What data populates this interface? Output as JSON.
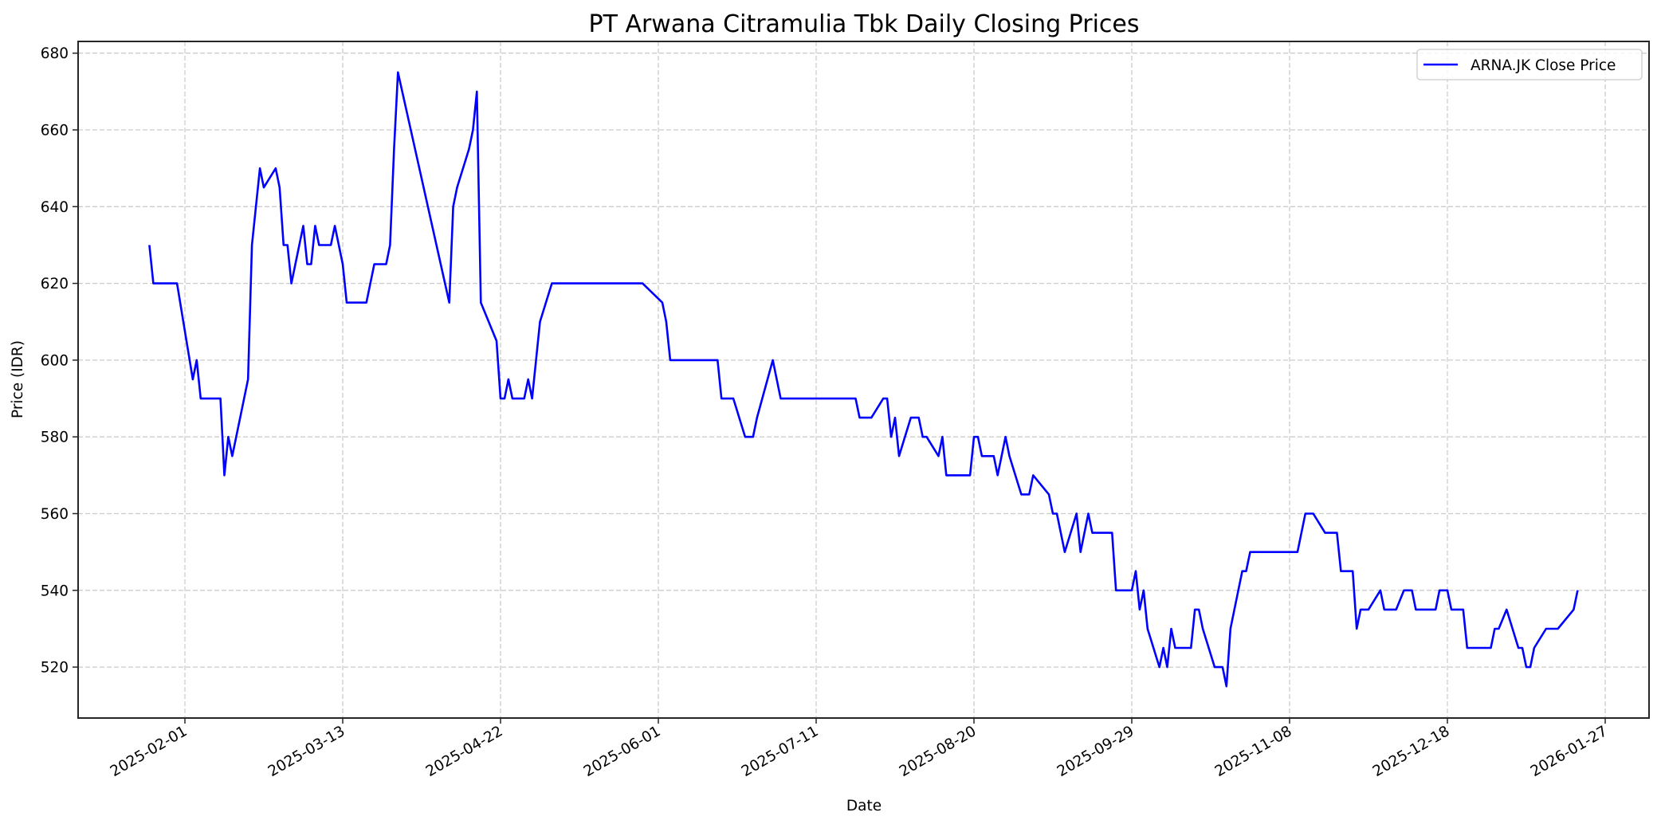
{
  "chart_data": {
    "type": "line",
    "title": "PT Arwana Citramulia Tbk Daily Closing Prices",
    "xlabel": "Date",
    "ylabel": "Price (IDR)",
    "ylim": [
      507,
      683
    ],
    "xlim_days_from_2025_02_01": [
      -27,
      374
    ],
    "yticks": [
      520,
      540,
      560,
      580,
      600,
      620,
      640,
      660,
      680
    ],
    "xticks": [
      "2025-02-01",
      "2025-03-13",
      "2025-04-22",
      "2025-06-01",
      "2025-07-11",
      "2025-08-20",
      "2025-09-29",
      "2025-11-08",
      "2025-12-18",
      "2026-01-27"
    ],
    "xtick_days": [
      0,
      40,
      80,
      120,
      160,
      200,
      240,
      280,
      320,
      360
    ],
    "grid": true,
    "grid_style": "dashed",
    "legend_position": "upper right",
    "series": [
      {
        "name": "ARNA.JK Close Price",
        "color": "#0000ff",
        "points": [
          [
            "2025-01-23",
            630
          ],
          [
            "2025-01-24",
            620
          ],
          [
            "2025-01-30",
            620
          ],
          [
            "2025-02-03",
            595
          ],
          [
            "2025-02-04",
            600
          ],
          [
            "2025-02-05",
            590
          ],
          [
            "2025-02-10",
            590
          ],
          [
            "2025-02-11",
            570
          ],
          [
            "2025-02-12",
            580
          ],
          [
            "2025-02-13",
            575
          ],
          [
            "2025-02-17",
            595
          ],
          [
            "2025-02-18",
            630
          ],
          [
            "2025-02-19",
            640
          ],
          [
            "2025-02-20",
            650
          ],
          [
            "2025-02-21",
            645
          ],
          [
            "2025-02-24",
            650
          ],
          [
            "2025-02-25",
            645
          ],
          [
            "2025-02-26",
            630
          ],
          [
            "2025-02-27",
            630
          ],
          [
            "2025-02-28",
            620
          ],
          [
            "2025-03-03",
            635
          ],
          [
            "2025-03-04",
            625
          ],
          [
            "2025-03-05",
            625
          ],
          [
            "2025-03-06",
            635
          ],
          [
            "2025-03-07",
            630
          ],
          [
            "2025-03-10",
            630
          ],
          [
            "2025-03-11",
            635
          ],
          [
            "2025-03-13",
            625
          ],
          [
            "2025-03-14",
            615
          ],
          [
            "2025-03-19",
            615
          ],
          [
            "2025-03-21",
            625
          ],
          [
            "2025-03-24",
            625
          ],
          [
            "2025-03-25",
            630
          ],
          [
            "2025-03-26",
            655
          ],
          [
            "2025-03-27",
            675
          ],
          [
            "2025-04-09",
            615
          ],
          [
            "2025-04-10",
            640
          ],
          [
            "2025-04-11",
            645
          ],
          [
            "2025-04-14",
            655
          ],
          [
            "2025-04-15",
            660
          ],
          [
            "2025-04-16",
            670
          ],
          [
            "2025-04-17",
            615
          ],
          [
            "2025-04-21",
            605
          ],
          [
            "2025-04-22",
            590
          ],
          [
            "2025-04-23",
            590
          ],
          [
            "2025-04-24",
            595
          ],
          [
            "2025-04-25",
            590
          ],
          [
            "2025-04-28",
            590
          ],
          [
            "2025-04-29",
            595
          ],
          [
            "2025-04-30",
            590
          ],
          [
            "2025-05-02",
            610
          ],
          [
            "2025-05-05",
            620
          ],
          [
            "2025-05-28",
            620
          ],
          [
            "2025-06-02",
            615
          ],
          [
            "2025-06-03",
            610
          ],
          [
            "2025-06-04",
            600
          ],
          [
            "2025-06-16",
            600
          ],
          [
            "2025-06-17",
            590
          ],
          [
            "2025-06-20",
            590
          ],
          [
            "2025-06-23",
            580
          ],
          [
            "2025-06-25",
            580
          ],
          [
            "2025-06-26",
            585
          ],
          [
            "2025-06-30",
            600
          ],
          [
            "2025-07-02",
            590
          ],
          [
            "2025-07-21",
            590
          ],
          [
            "2025-07-22",
            585
          ],
          [
            "2025-07-25",
            585
          ],
          [
            "2025-07-28",
            590
          ],
          [
            "2025-07-29",
            590
          ],
          [
            "2025-07-30",
            580
          ],
          [
            "2025-07-31",
            585
          ],
          [
            "2025-08-01",
            575
          ],
          [
            "2025-08-04",
            585
          ],
          [
            "2025-08-06",
            585
          ],
          [
            "2025-08-07",
            580
          ],
          [
            "2025-08-08",
            580
          ],
          [
            "2025-08-11",
            575
          ],
          [
            "2025-08-12",
            580
          ],
          [
            "2025-08-13",
            570
          ],
          [
            "2025-08-19",
            570
          ],
          [
            "2025-08-20",
            580
          ],
          [
            "2025-08-21",
            580
          ],
          [
            "2025-08-22",
            575
          ],
          [
            "2025-08-25",
            575
          ],
          [
            "2025-08-26",
            570
          ],
          [
            "2025-08-28",
            580
          ],
          [
            "2025-08-29",
            575
          ],
          [
            "2025-09-01",
            565
          ],
          [
            "2025-09-03",
            565
          ],
          [
            "2025-09-04",
            570
          ],
          [
            "2025-09-08",
            565
          ],
          [
            "2025-09-09",
            560
          ],
          [
            "2025-09-10",
            560
          ],
          [
            "2025-09-12",
            550
          ],
          [
            "2025-09-15",
            560
          ],
          [
            "2025-09-16",
            550
          ],
          [
            "2025-09-18",
            560
          ],
          [
            "2025-09-19",
            555
          ],
          [
            "2025-09-24",
            555
          ],
          [
            "2025-09-25",
            540
          ],
          [
            "2025-09-29",
            540
          ],
          [
            "2025-09-30",
            545
          ],
          [
            "2025-10-01",
            535
          ],
          [
            "2025-10-02",
            540
          ],
          [
            "2025-10-03",
            530
          ],
          [
            "2025-10-06",
            520
          ],
          [
            "2025-10-07",
            525
          ],
          [
            "2025-10-08",
            520
          ],
          [
            "2025-10-09",
            530
          ],
          [
            "2025-10-10",
            525
          ],
          [
            "2025-10-14",
            525
          ],
          [
            "2025-10-15",
            535
          ],
          [
            "2025-10-16",
            535
          ],
          [
            "2025-10-17",
            530
          ],
          [
            "2025-10-20",
            520
          ],
          [
            "2025-10-22",
            520
          ],
          [
            "2025-10-23",
            515
          ],
          [
            "2025-10-24",
            530
          ],
          [
            "2025-10-27",
            545
          ],
          [
            "2025-10-28",
            545
          ],
          [
            "2025-10-29",
            550
          ],
          [
            "2025-11-10",
            550
          ],
          [
            "2025-11-12",
            560
          ],
          [
            "2025-11-14",
            560
          ],
          [
            "2025-11-17",
            555
          ],
          [
            "2025-11-20",
            555
          ],
          [
            "2025-11-21",
            545
          ],
          [
            "2025-11-24",
            545
          ],
          [
            "2025-11-25",
            530
          ],
          [
            "2025-11-26",
            535
          ],
          [
            "2025-11-28",
            535
          ],
          [
            "2025-12-01",
            540
          ],
          [
            "2025-12-02",
            535
          ],
          [
            "2025-12-05",
            535
          ],
          [
            "2025-12-07",
            540
          ],
          [
            "2025-12-09",
            540
          ],
          [
            "2025-12-10",
            535
          ],
          [
            "2025-12-15",
            535
          ],
          [
            "2025-12-16",
            540
          ],
          [
            "2025-12-18",
            540
          ],
          [
            "2025-12-19",
            535
          ],
          [
            "2025-12-22",
            535
          ],
          [
            "2025-12-23",
            525
          ],
          [
            "2025-12-29",
            525
          ],
          [
            "2025-12-30",
            530
          ],
          [
            "2025-12-31",
            530
          ],
          [
            "2026-01-02",
            535
          ],
          [
            "2026-01-05",
            525
          ],
          [
            "2026-01-06",
            525
          ],
          [
            "2026-01-07",
            520
          ],
          [
            "2026-01-08",
            520
          ],
          [
            "2026-01-09",
            525
          ],
          [
            "2026-01-12",
            530
          ],
          [
            "2026-01-15",
            530
          ],
          [
            "2026-01-19",
            535
          ],
          [
            "2026-01-20",
            540
          ]
        ]
      }
    ]
  },
  "colors": {
    "line": "#0000ff",
    "grid": "#cccccc",
    "axes": "#262626",
    "background": "#ffffff"
  }
}
